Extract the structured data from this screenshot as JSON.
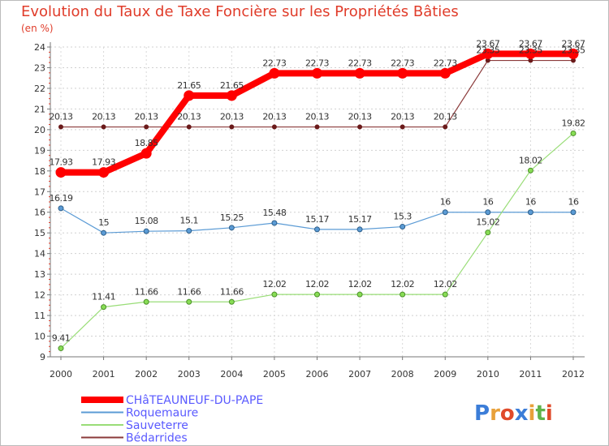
{
  "chart_data": {
    "type": "line",
    "title": "Evolution du Taux de Taxe Foncière sur les Propriétés Bâties",
    "ylabel": "(en %)",
    "xlabel": "",
    "categories": [
      "2000",
      "2001",
      "2002",
      "2003",
      "2004",
      "2005",
      "2006",
      "2007",
      "2008",
      "2009",
      "2010",
      "2011",
      "2012"
    ],
    "ylim": [
      9,
      24
    ],
    "yticks": [
      9,
      10,
      11,
      12,
      13,
      14,
      15,
      16,
      17,
      18,
      19,
      20,
      21,
      22,
      23,
      24
    ],
    "series": [
      {
        "name": "CHâTEAUNEUF-DU-PAPE",
        "color": "#ff0000",
        "values": [
          17.93,
          17.93,
          18.85,
          21.65,
          21.65,
          22.73,
          22.73,
          22.73,
          22.73,
          22.73,
          23.67,
          23.67,
          23.67
        ],
        "labels": [
          "17.93",
          "17.93",
          "18.85",
          "21.65",
          "21.65",
          "22.73",
          "22.73",
          "22.73",
          "22.73",
          "22.73",
          "23.67",
          "23.67",
          "23.67"
        ]
      },
      {
        "name": "Roquemaure",
        "color": "#5b9bd5",
        "values": [
          16.19,
          15,
          15.08,
          15.1,
          15.25,
          15.48,
          15.17,
          15.17,
          15.3,
          16,
          16,
          16,
          16
        ],
        "labels": [
          "16.19",
          "15",
          "15.08",
          "15.1",
          "15.25",
          "15.48",
          "15.17",
          "15.17",
          "15.3",
          "16",
          "16",
          "16",
          "16"
        ]
      },
      {
        "name": "Sauveterre",
        "color": "#99dd77",
        "values": [
          9.41,
          11.41,
          11.66,
          11.66,
          11.66,
          12.02,
          12.02,
          12.02,
          12.02,
          12.02,
          15.02,
          18.02,
          19.82
        ],
        "labels": [
          "9.41",
          "11.41",
          "11.66",
          "11.66",
          "11.66",
          "12.02",
          "12.02",
          "12.02",
          "12.02",
          "12.02",
          "15.02",
          "18.02",
          "19.82"
        ]
      },
      {
        "name": "Bédarrides",
        "color": "#8b3a3a",
        "values": [
          20.13,
          20.13,
          20.13,
          20.13,
          20.13,
          20.13,
          20.13,
          20.13,
          20.13,
          20.13,
          23.35,
          23.35,
          23.35
        ],
        "labels": [
          "20.13",
          "20.13",
          "20.13",
          "20.13",
          "20.13",
          "20.13",
          "20.13",
          "20.13",
          "20.13",
          "20.13",
          "23.35",
          "23.35",
          "23.35"
        ]
      }
    ],
    "legend_position": "bottom-left"
  },
  "logo": {
    "text": "Proxiti"
  }
}
